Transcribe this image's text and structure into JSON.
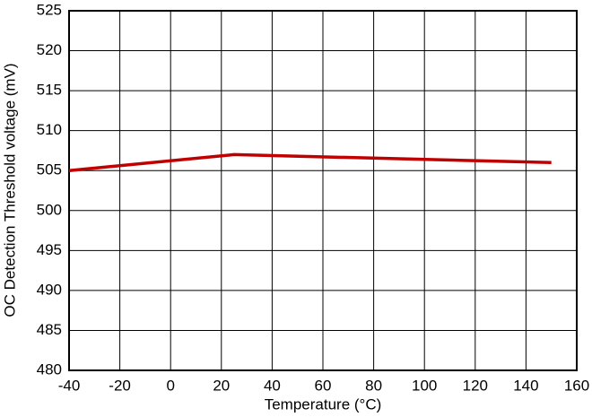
{
  "chart_data": {
    "type": "line",
    "x_label": "Temperature (°C)",
    "y_label": "OC Detection Threshold voltage (mV)",
    "series": [
      {
        "color": "#c00000",
        "x": [
          -40,
          25,
          150
        ],
        "values": [
          505,
          507,
          506
        ]
      }
    ],
    "xlim": [
      -40,
      160
    ],
    "xticks": [
      -40,
      -20,
      0,
      20,
      40,
      60,
      80,
      100,
      120,
      140,
      160
    ],
    "ylim": [
      480,
      525
    ],
    "yticks": [
      480,
      485,
      490,
      495,
      500,
      505,
      510,
      515,
      520,
      525
    ],
    "grid": true
  }
}
